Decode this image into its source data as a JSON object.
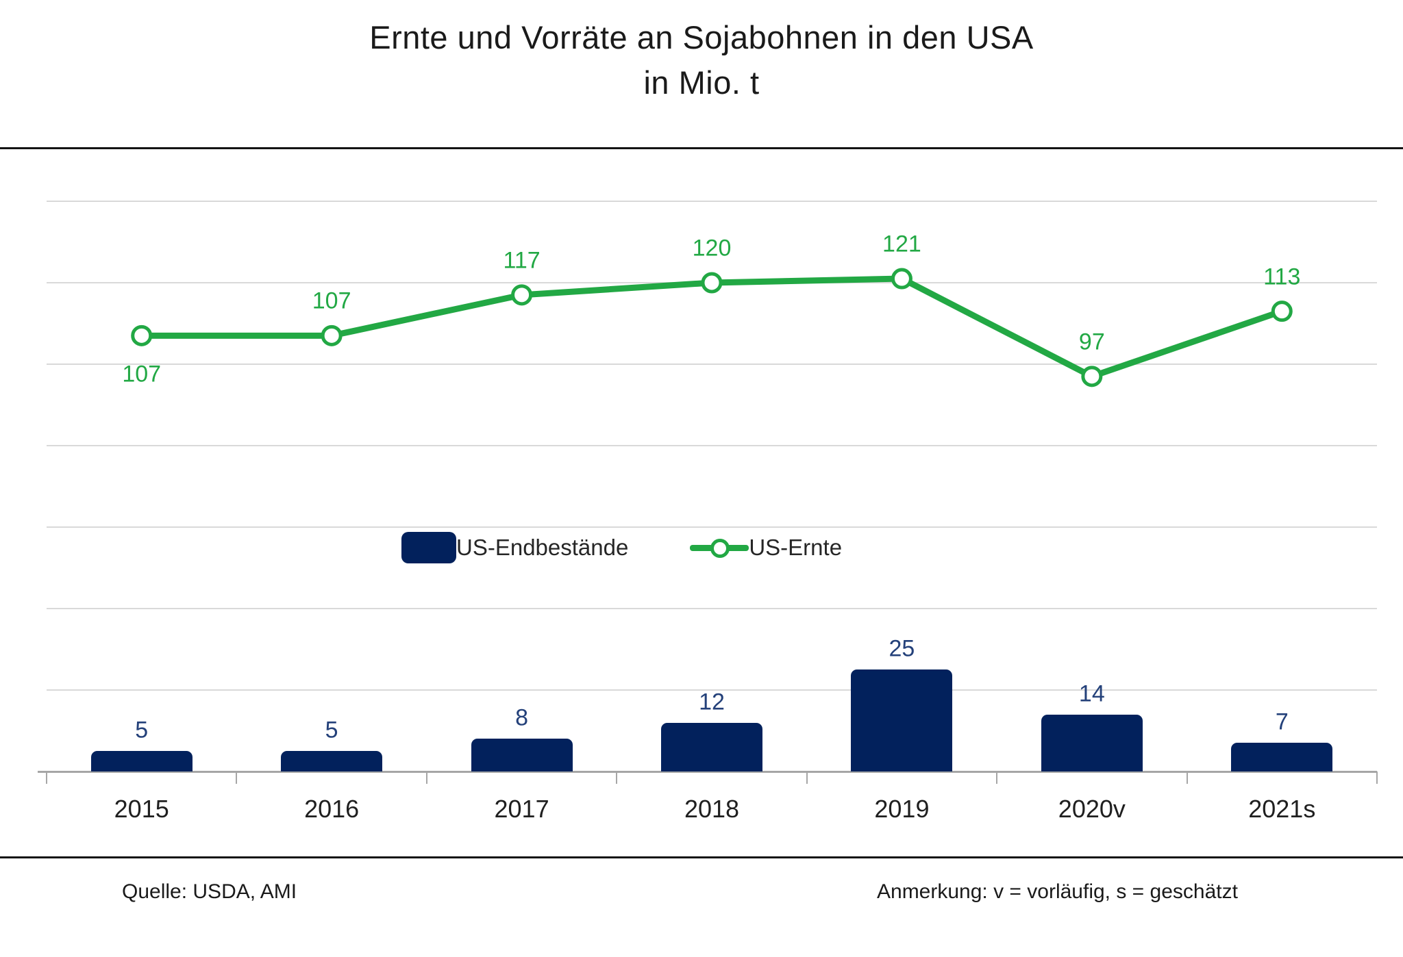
{
  "title": {
    "line1": "Ernte und Vorräte an Sojabohnen in den USA",
    "line2": "in Mio. t"
  },
  "legend": {
    "bar_label": "US-Endbestände",
    "line_label": "US-Ernte"
  },
  "footer": {
    "source": "Quelle: USDA, AMI",
    "note": "Anmerkung: v = vorläufig, s = geschätzt"
  },
  "colors": {
    "bar": "#02215c",
    "bar_label": "#24417a",
    "line": "#22a844",
    "line_label": "#22a844",
    "gridline": "#d9d9d9",
    "axis": "#a6a6a6",
    "rule": "#141414"
  },
  "chart_data": {
    "type": "combo",
    "categories": [
      "2015",
      "2016",
      "2017",
      "2018",
      "2019",
      "2020v",
      "2021s"
    ],
    "series": [
      {
        "name": "US-Endbestände",
        "type": "bar",
        "values": [
          5,
          5,
          8,
          12,
          25,
          14,
          7
        ],
        "data_labels": [
          "5",
          "5",
          "8",
          "12",
          "25",
          "14",
          "7"
        ]
      },
      {
        "name": "US-Ernte",
        "type": "line",
        "values": [
          107,
          107,
          117,
          120,
          121,
          97,
          113
        ],
        "data_labels": [
          "107",
          "107",
          "117",
          "120",
          "121",
          "97",
          "113"
        ],
        "label_positions": [
          "below",
          "above",
          "above",
          "above",
          "above",
          "above",
          "above"
        ]
      }
    ],
    "title": "Ernte und Vorräte an Sojabohnen in den USA in Mio. t",
    "xlabel": "",
    "ylabel": "",
    "ylim": [
      0,
      150
    ],
    "gridline_values": [
      20,
      40,
      60,
      80,
      100,
      120,
      140
    ],
    "y_axis_labels_visible": false,
    "grid": true,
    "legend_position": "center-middle"
  }
}
